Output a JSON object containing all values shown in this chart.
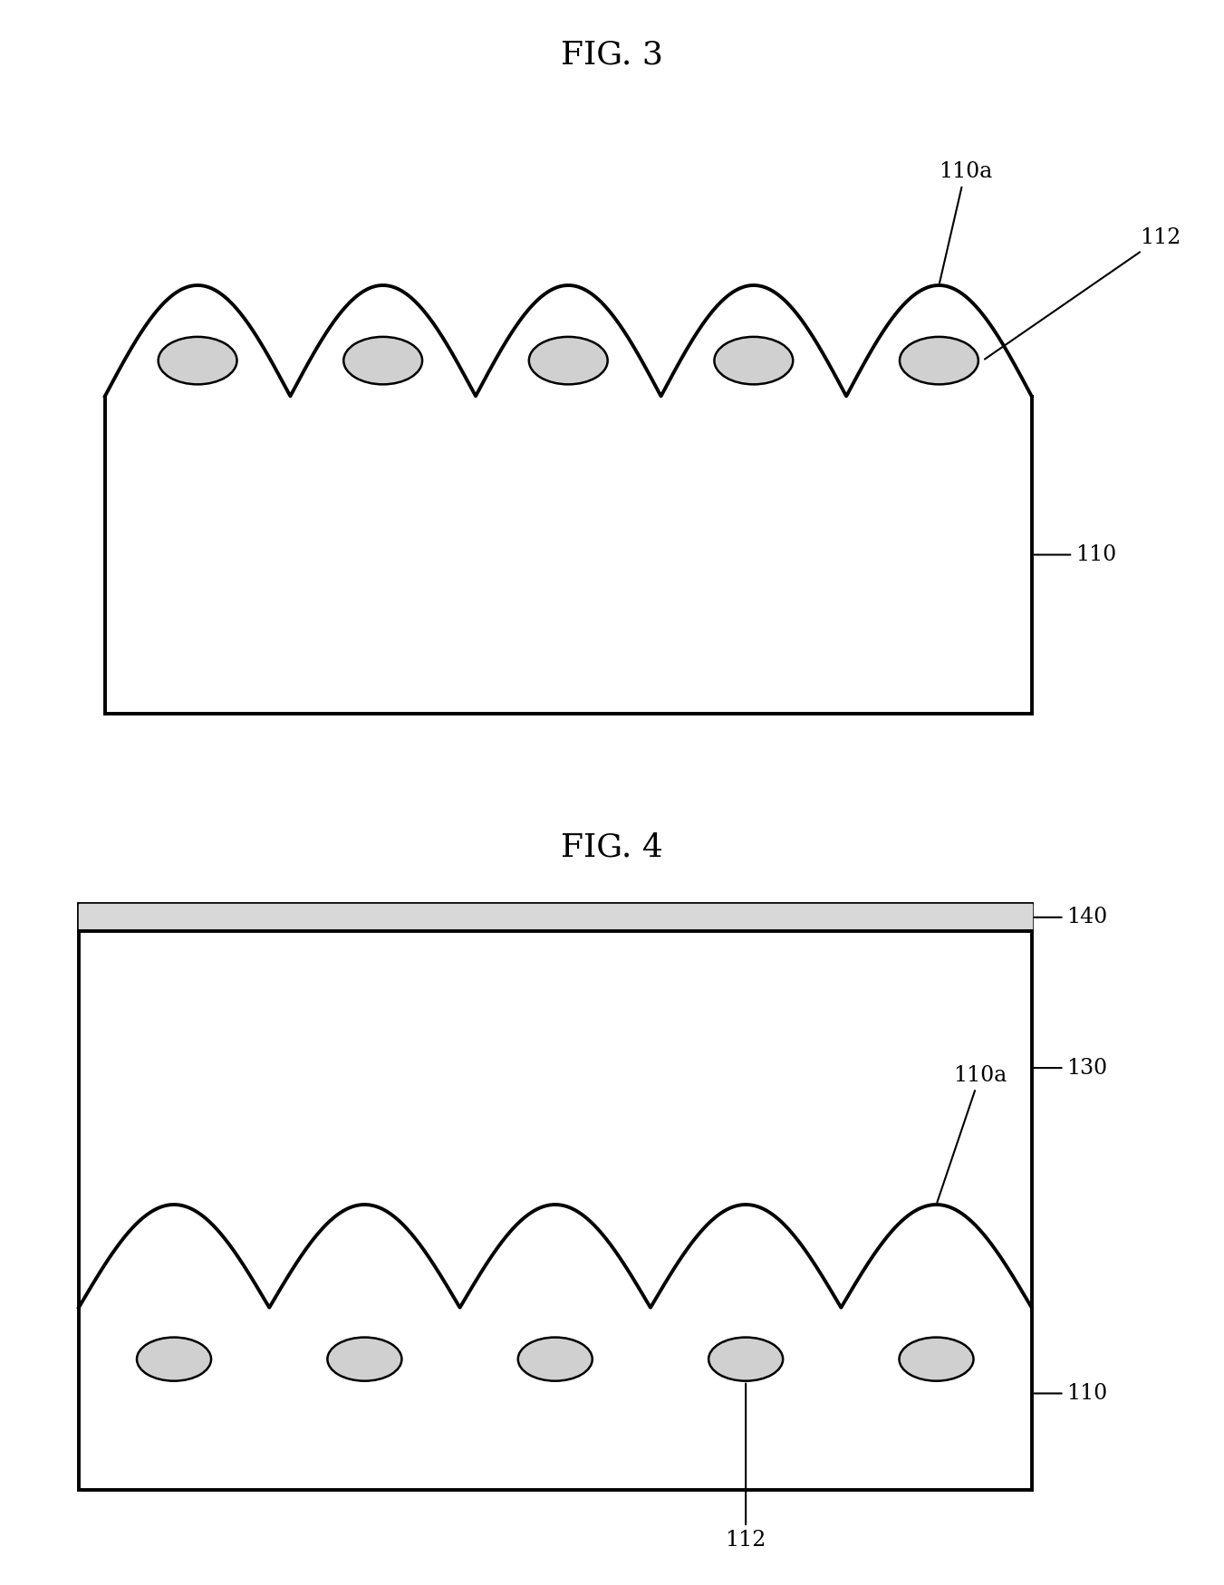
{
  "fig3_title": "FIG. 3",
  "fig4_title": "FIG. 4",
  "bg_color": "#ffffff",
  "line_color": "#000000",
  "line_width": 2.8,
  "ellipse_face": "#d0d0d0",
  "num_bumps": 5,
  "label_110a_fig3": "110a",
  "label_112_fig3": "112",
  "label_110_fig3": "110",
  "label_140_fig4": "140",
  "label_130_fig4": "130",
  "label_110a_fig4": "110a",
  "label_110_fig4": "110",
  "label_112_fig4": "112",
  "font_size_title": 26,
  "font_size_label": 17
}
